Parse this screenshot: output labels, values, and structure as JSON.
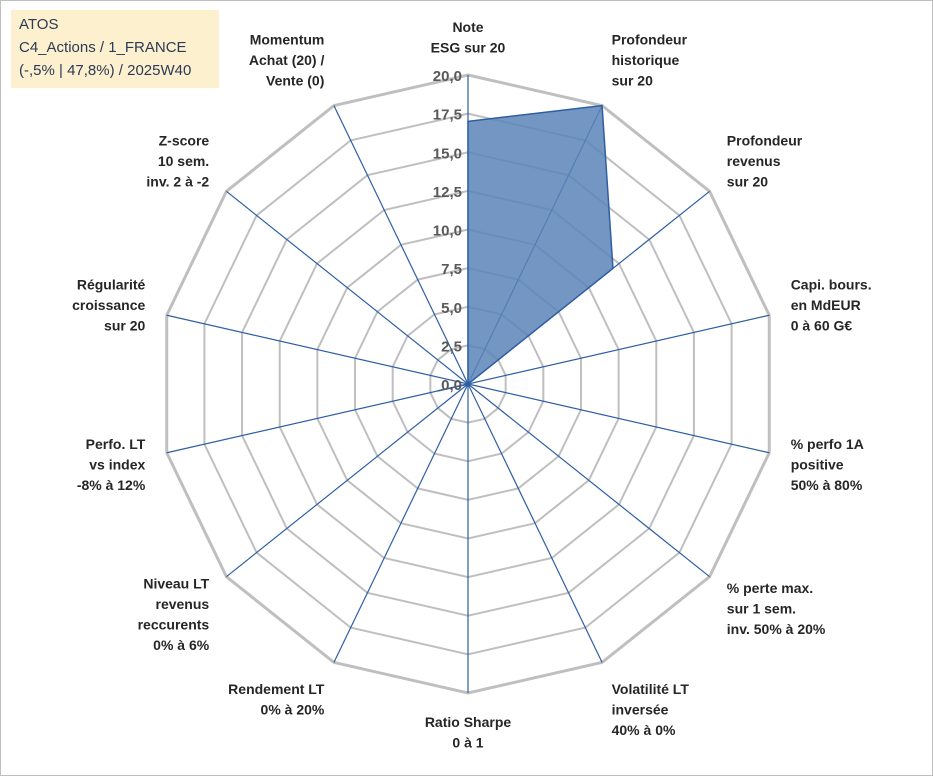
{
  "info": {
    "line1": "ATOS",
    "line2": "C4_Actions / 1_FRANCE",
    "line3": "(-,5% | 47,8%) / 2025W40"
  },
  "colors": {
    "fill": "#5b84b8",
    "stroke": "#2e5fa3",
    "grid": "#bfbfbf",
    "spoke": "#2e5fa3"
  },
  "chart_data": {
    "type": "radar",
    "title": "",
    "rmin": 0,
    "rmax": 20,
    "ticks": [
      "0,0",
      "2,5",
      "5,0",
      "7,5",
      "10,0",
      "12,5",
      "15,0",
      "17,5",
      "20,0"
    ],
    "axes": [
      {
        "lines": [
          "Note",
          "ESG sur 20"
        ],
        "value": 17.0
      },
      {
        "lines": [
          "Profondeur",
          "historique",
          "sur 20"
        ],
        "value": 20.0
      },
      {
        "lines": [
          "Profondeur",
          "revenus",
          "sur 20"
        ],
        "value": 12.0
      },
      {
        "lines": [
          "Capi. bours.",
          "en MdEUR",
          "0 à 60 G€"
        ],
        "value": 0
      },
      {
        "lines": [
          "% perfo 1A",
          "positive",
          "50% à 80%"
        ],
        "value": 0
      },
      {
        "lines": [
          "% perte max.",
          "sur 1 sem.",
          "inv. 50% à 20%"
        ],
        "value": 0
      },
      {
        "lines": [
          "Volatilité LT",
          "inversée",
          "40% à 0%"
        ],
        "value": 0
      },
      {
        "lines": [
          "Ratio Sharpe",
          "0 à 1"
        ],
        "value": 0
      },
      {
        "lines": [
          "Rendement LT",
          "0% à 20%"
        ],
        "value": 0
      },
      {
        "lines": [
          "Niveau LT",
          "revenus",
          "reccurents",
          "0% à 6%"
        ],
        "value": 0
      },
      {
        "lines": [
          "Perfo. LT",
          "vs index",
          "-8% à 12%"
        ],
        "value": 2.0
      },
      {
        "lines": [
          "Régularité",
          "croissance",
          "sur 20"
        ],
        "value": 0
      },
      {
        "lines": [
          "Z-score",
          "10 sem.",
          "inv. 2 à -2"
        ],
        "value": 0
      },
      {
        "lines": [
          "Momentum",
          "Achat (20) /",
          "Vente (0)"
        ],
        "value": 0
      }
    ],
    "series": [
      {
        "name": "ATOS"
      }
    ]
  }
}
